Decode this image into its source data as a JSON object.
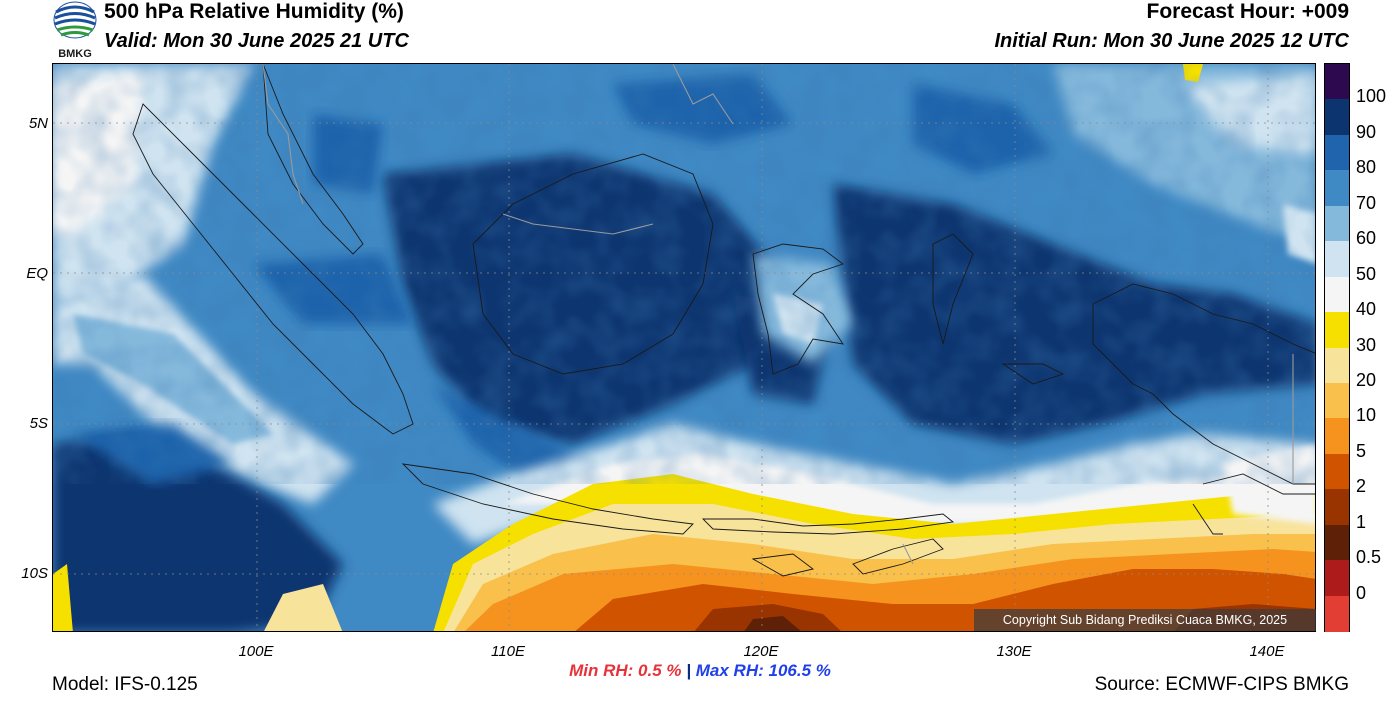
{
  "header": {
    "title": "500 hPa Relative Humidity (%)",
    "valid": "Valid: Mon 30 June 2025 21 UTC",
    "forecast_hour": "Forecast Hour: +009",
    "initial_run": "Initial Run: Mon 30 June 2025 12 UTC",
    "logo_text": "BMKG"
  },
  "map": {
    "lat_labels": [
      "5N",
      "EQ",
      "5S",
      "10S"
    ],
    "lon_labels": [
      "100E",
      "110E",
      "120E",
      "130E",
      "140E"
    ],
    "copyright": "Copyright Sub Bidang Prediksi Cuaca BMKG, 2025"
  },
  "legend": {
    "labels": [
      "100",
      "90",
      "80",
      "70",
      "60",
      "50",
      "40",
      "30",
      "20",
      "10",
      "5",
      "2",
      "1",
      "0.5",
      "0"
    ],
    "colors": [
      "#2d0a50",
      "#0c3570",
      "#1f64ac",
      "#3f89c4",
      "#85b9dc",
      "#cfe3f0",
      "#f5f5f5",
      "#f6e000",
      "#f8e39a",
      "#f9c04c",
      "#f6931e",
      "#d05400",
      "#993300",
      "#5e2108",
      "#ad1b1b",
      "#e23e33"
    ]
  },
  "stats": {
    "min_label": "Min RH:",
    "min_value": "0.5 %",
    "separator": "|",
    "max_label": "Max RH:",
    "max_value": "106.5 %"
  },
  "footer": {
    "model": "Model: IFS-0.125",
    "source": "Source: ECMWF-CIPS BMKG"
  }
}
